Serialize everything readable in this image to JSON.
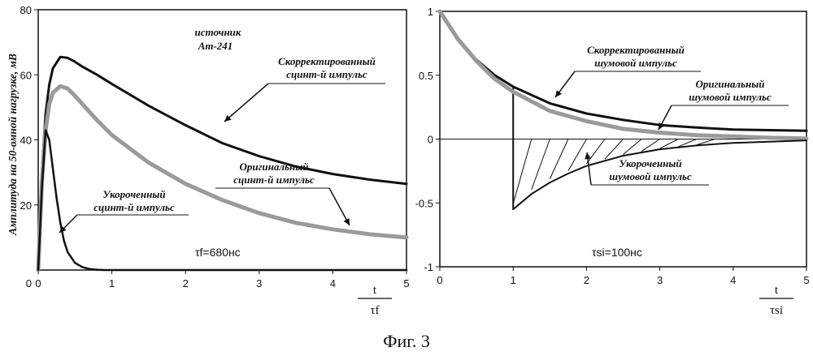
{
  "figure_caption": "Фиг. 3",
  "chart_data": [
    {
      "type": "line",
      "ylabel": "Амплитуда на 50-омной нагрузке, мВ",
      "xlabel_num": "t",
      "xlabel_den": "τf",
      "xlim": [
        0,
        5
      ],
      "ylim": [
        0,
        80
      ],
      "x_ticks": [
        "0",
        "1",
        "2",
        "3",
        "4",
        "5"
      ],
      "y_ticks": [
        "20",
        "40",
        "60",
        "80"
      ],
      "source_label_1": "источник",
      "source_label_2": "Am-241",
      "param_text": "τf=680нс",
      "grid": false,
      "series": [
        {
          "name_lines": [
            "Скорректированный",
            "сцинт-й импульс"
          ],
          "color": "#111111",
          "width": 3,
          "x": [
            0,
            0.05,
            0.1,
            0.15,
            0.2,
            0.3,
            0.4,
            0.5,
            0.6,
            0.8,
            1.0,
            1.5,
            2.0,
            2.5,
            3.0,
            3.5,
            4.0,
            4.5,
            5.0
          ],
          "y": [
            0,
            30,
            48,
            57,
            62,
            65.5,
            65.2,
            64,
            62.5,
            60,
            57.2,
            50.5,
            44.5,
            39,
            35,
            31.8,
            29.5,
            27.8,
            26.5
          ]
        },
        {
          "name_lines": [
            "Оригинальный",
            "сцинт-й импульс"
          ],
          "color": "#9a9a9a",
          "width": 5,
          "x": [
            0,
            0.05,
            0.1,
            0.15,
            0.2,
            0.3,
            0.4,
            0.5,
            0.6,
            0.8,
            1.0,
            1.5,
            2.0,
            2.5,
            3.0,
            3.5,
            4.0,
            4.5,
            5.0
          ],
          "y": [
            0,
            27,
            43,
            51,
            54.5,
            56.5,
            55.8,
            53.5,
            51,
            46,
            41.5,
            33,
            26.5,
            21.5,
            17.5,
            14.5,
            12.5,
            11,
            10
          ]
        },
        {
          "name_lines": [
            "Укороченный",
            "сцинт-й импульс"
          ],
          "color": "#111111",
          "width": 2.5,
          "x": [
            0,
            0.05,
            0.1,
            0.15,
            0.2,
            0.25,
            0.3,
            0.35,
            0.4,
            0.5,
            0.6,
            0.7,
            0.8,
            0.9,
            1.0,
            5.0
          ],
          "y": [
            0,
            25,
            43,
            40,
            31,
            22,
            14.5,
            9,
            5.5,
            2.2,
            0.9,
            0.3,
            0.1,
            0,
            0,
            0
          ]
        }
      ]
    },
    {
      "type": "line",
      "xlabel_num": "t",
      "xlabel_den": "τsi",
      "xlim": [
        0,
        5
      ],
      "ylim": [
        -1,
        1
      ],
      "x_ticks": [
        "0",
        "1",
        "2",
        "3",
        "4",
        "5"
      ],
      "y_ticks": [
        "1",
        "0.5",
        "0",
        "-0.5",
        "-1"
      ],
      "param_text": "τsi=100нс",
      "grid": false,
      "series": [
        {
          "name_lines": [
            "Скорректированный",
            "шумовой импульс"
          ],
          "color": "#111111",
          "width": 3,
          "x": [
            0,
            0.25,
            0.5,
            0.75,
            1.0,
            1.5,
            2.0,
            2.5,
            3.0,
            3.5,
            4.0,
            4.5,
            5.0
          ],
          "y": [
            1.0,
            0.79,
            0.62,
            0.5,
            0.41,
            0.28,
            0.2,
            0.15,
            0.11,
            0.09,
            0.075,
            0.07,
            0.065
          ]
        },
        {
          "name_lines": [
            "Оригинальный",
            "шумовой импульс"
          ],
          "color": "#9a9a9a",
          "width": 5,
          "x": [
            0,
            0.25,
            0.5,
            0.75,
            1.0,
            1.5,
            2.0,
            2.5,
            3.0,
            3.5,
            4.0,
            4.5,
            5.0
          ],
          "y": [
            1.0,
            0.78,
            0.61,
            0.47,
            0.37,
            0.22,
            0.14,
            0.08,
            0.05,
            0.03,
            0.02,
            0.01,
            0.005
          ]
        },
        {
          "name_lines": [
            "Укороченный",
            "шумовой импульс"
          ],
          "color": "#111111",
          "width": 2,
          "x": [
            1.0,
            1.25,
            1.5,
            1.75,
            2.0,
            2.5,
            3.0,
            3.5,
            4.0,
            4.5,
            5.0
          ],
          "y": [
            -0.55,
            -0.43,
            -0.34,
            -0.27,
            -0.21,
            -0.13,
            -0.08,
            -0.05,
            -0.03,
            -0.02,
            -0.01
          ]
        }
      ]
    }
  ]
}
